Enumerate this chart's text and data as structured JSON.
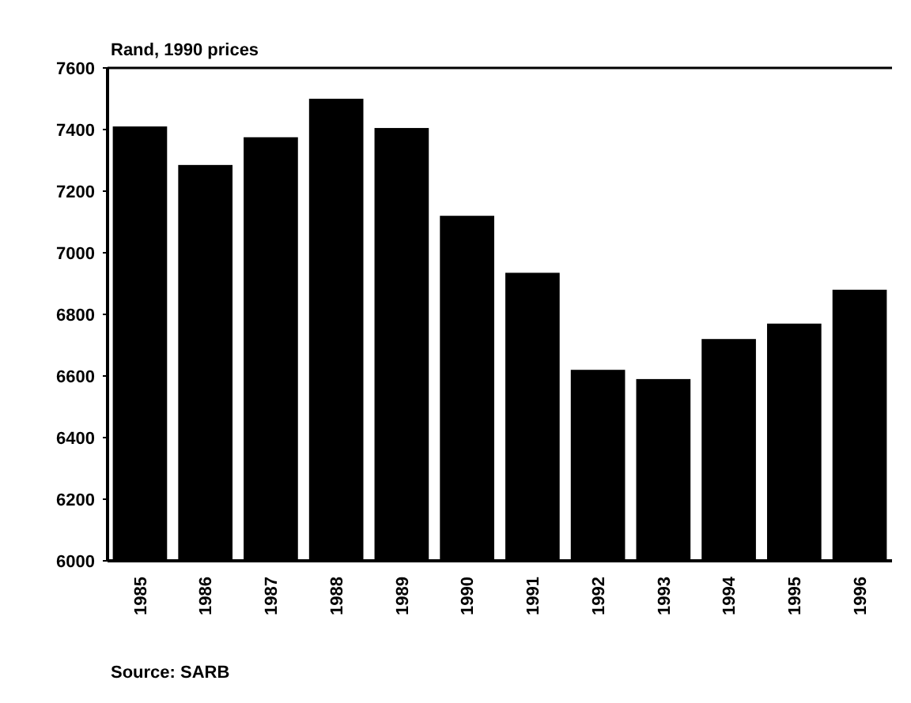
{
  "chart_data": {
    "type": "bar",
    "ylabel": "Rand, 1990 prices",
    "categories": [
      "1985",
      "1986",
      "1987",
      "1988",
      "1989",
      "1990",
      "1991",
      "1992",
      "1993",
      "1994",
      "1995",
      "1996"
    ],
    "values": [
      7410,
      7285,
      7375,
      7500,
      7405,
      7120,
      6935,
      6620,
      6590,
      6720,
      6770,
      6880
    ],
    "color": "#000000",
    "ylim": [
      6000,
      7600
    ],
    "yticks": [
      6000,
      6200,
      6400,
      6600,
      6800,
      7000,
      7200,
      7400,
      7600
    ],
    "grid": false,
    "annotations": [
      "Source: SARB"
    ]
  }
}
